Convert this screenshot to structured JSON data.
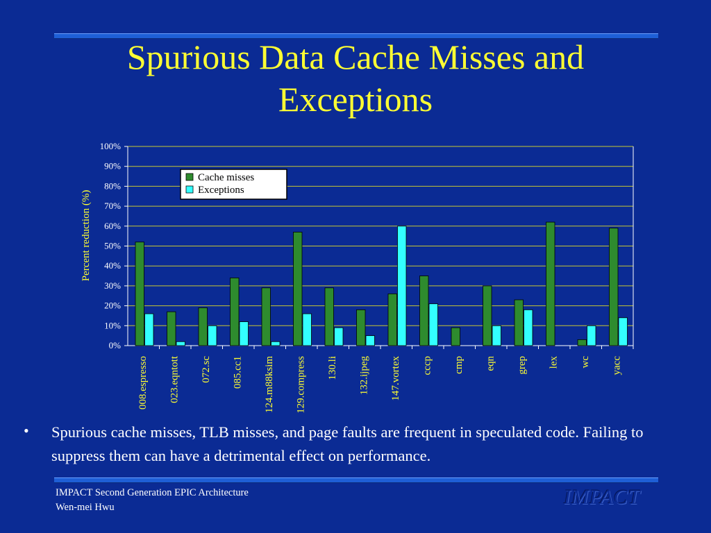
{
  "slide": {
    "title_lines": [
      "Spurious Data Cache Misses and",
      "Exceptions"
    ],
    "bullet": "Spurious cache misses, TLB misses, and page faults are frequent in speculated code. Failing to suppress them can have a detrimental effect on performance.",
    "footer_line1": "IMPACT Second Generation EPIC Architecture",
    "footer_line2": "Wen-mei Hwu",
    "logo_text": "IMPACT"
  },
  "colors": {
    "background": "#0b2b94",
    "title": "#ffff33",
    "cache_misses": "#2e8b2e",
    "exceptions": "#33ffff",
    "gridline": "#c8c832"
  },
  "chart_data": {
    "type": "bar",
    "ylabel": "Percent reduction (%)",
    "xlabel": "",
    "ylim": [
      0,
      100
    ],
    "yticks": [
      "0%",
      "10%",
      "20%",
      "30%",
      "40%",
      "50%",
      "60%",
      "70%",
      "80%",
      "90%",
      "100%"
    ],
    "grid": true,
    "legend_position": "top-left",
    "categories": [
      "008.espresso",
      "023.eqntott",
      "072.sc",
      "085.cc1",
      "124.m88ksim",
      "129.compress",
      "130.li",
      "132.ijpeg",
      "147.vortex",
      "cccp",
      "cmp",
      "eqn",
      "grep",
      "lex",
      "wc",
      "yacc"
    ],
    "series": [
      {
        "name": "Cache misses",
        "values": [
          52,
          17,
          19,
          34,
          29,
          57,
          29,
          18,
          26,
          35,
          9,
          30,
          23,
          62,
          3,
          59
        ]
      },
      {
        "name": "Exceptions",
        "values": [
          16,
          2,
          10,
          12,
          2,
          16,
          9,
          5,
          60,
          21,
          0,
          10,
          18,
          0,
          10,
          14
        ]
      }
    ]
  }
}
